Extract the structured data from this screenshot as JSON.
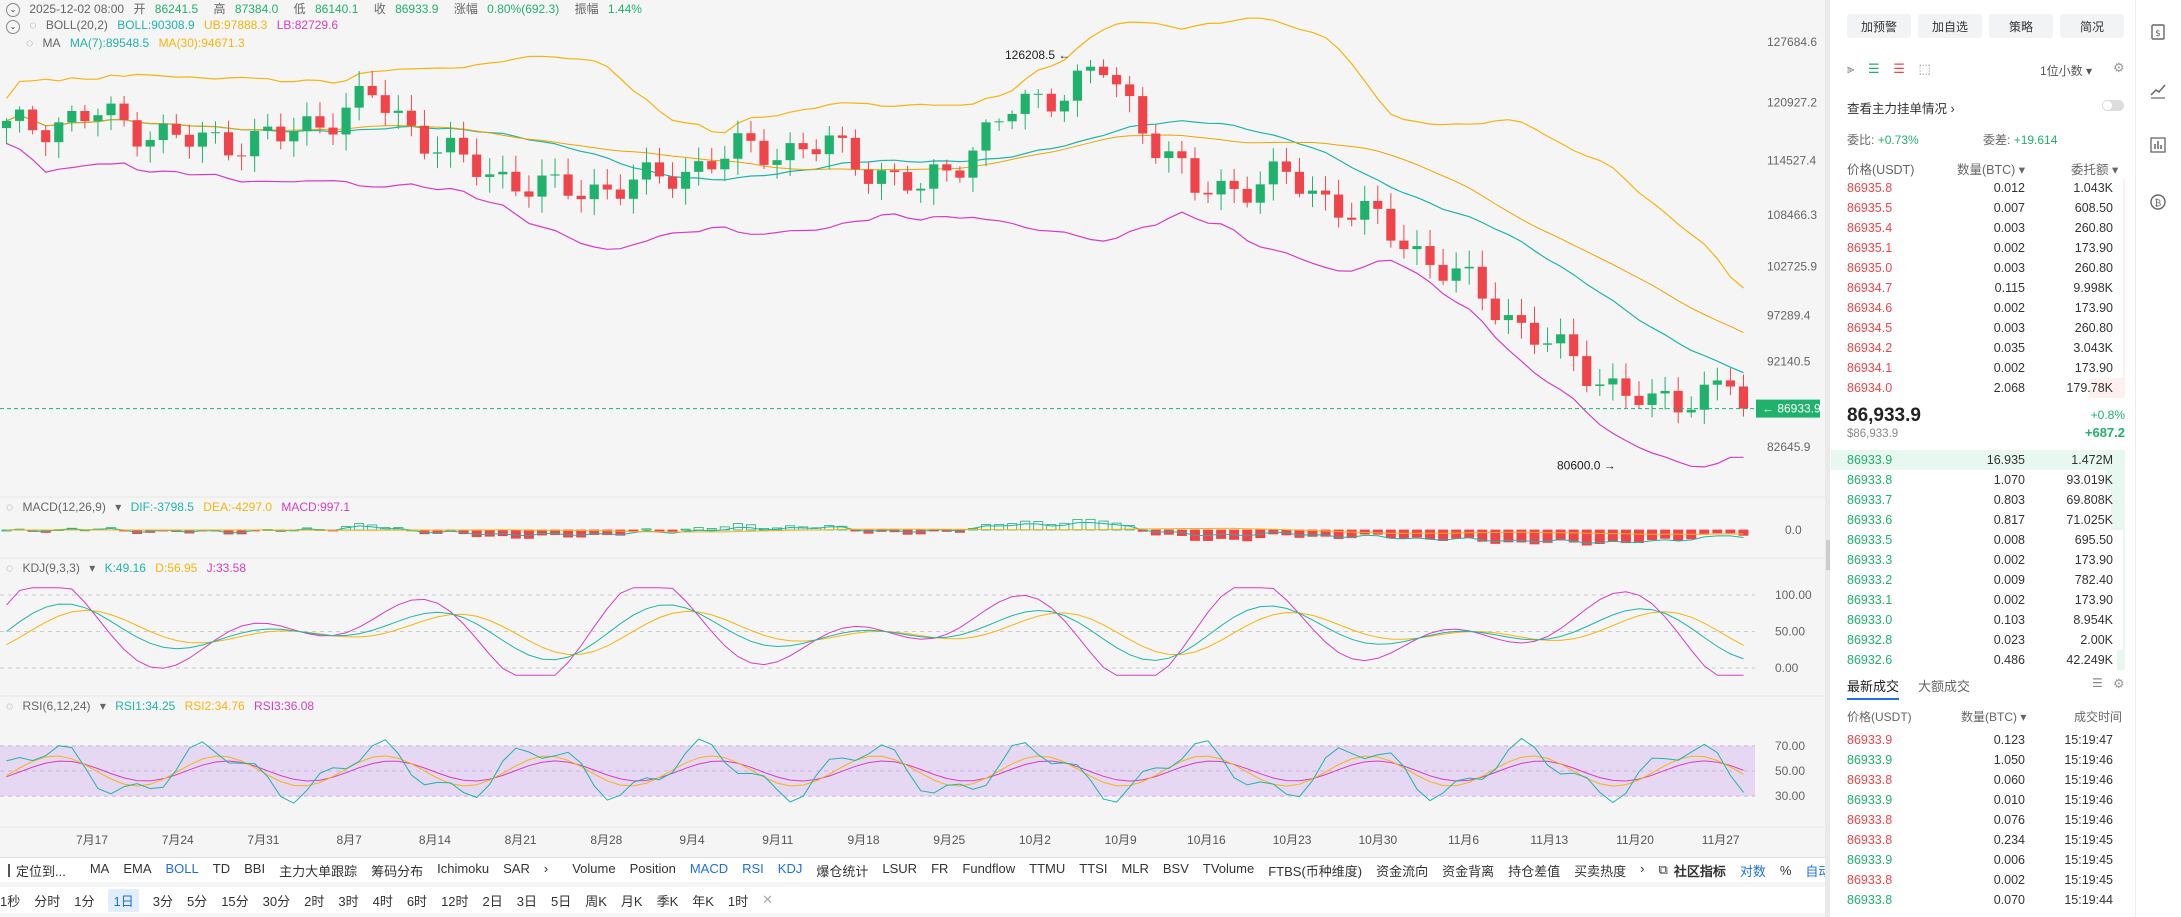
{
  "header": {
    "date": "2025-12-02 08:00",
    "open_label": "开",
    "open": "86241.5",
    "high_label": "高",
    "high": "87384.0",
    "low_label": "低",
    "low": "86140.1",
    "close_label": "收",
    "close": "86933.9",
    "change_label": "涨幅",
    "change": "0.80%(692.3)",
    "amp_label": "振幅",
    "amp": "1.44%"
  },
  "boll": {
    "title": "BOLL(20,2)",
    "boll": "BOLL:90308.9",
    "ub": "UB:97888.3",
    "lb": "LB:82729.6"
  },
  "ma": {
    "title": "MA",
    "ma7": "MA(7):89548.5",
    "ma30": "MA(30):94671.3"
  },
  "macd": {
    "title": "MACD(12,26,9)",
    "dif": "DIF:-3798.5",
    "dea": "DEA:-4297.0",
    "macd": "MACD:997.1"
  },
  "kdj": {
    "title": "KDJ(9,3,3)",
    "k": "K:49.16",
    "d": "D:56.95",
    "j": "J:33.58"
  },
  "rsi": {
    "title": "RSI(6,12,24)",
    "rsi1": "RSI1:34.25",
    "rsi2": "RSI2:34.76",
    "rsi3": "RSI3:36.08"
  },
  "price_axis": [
    "127684.6",
    "120927.2",
    "114527.4",
    "108466.3",
    "102725.9",
    "97289.4",
    "92140.5",
    "82645.9"
  ],
  "current_price_tag": "86933.9",
  "annotations": {
    "high": "126208.5",
    "low": "80600.0"
  },
  "macd_axis": [
    "0.0"
  ],
  "kdj_axis": [
    "100.00",
    "50.00",
    "0.00"
  ],
  "rsi_axis": [
    "70.00",
    "50.00",
    "30.00"
  ],
  "date_axis": [
    "7月17",
    "7月24",
    "7月31",
    "8月7",
    "8月14",
    "8月21",
    "8月28",
    "9月4",
    "9月11",
    "9月18",
    "9月25",
    "10月2",
    "10月9",
    "10月16",
    "10月23",
    "10月30",
    "11月6",
    "11月13",
    "11月20",
    "11月27"
  ],
  "indicator_bar": {
    "locate": "定位到...",
    "items": [
      "MA",
      "EMA",
      "BOLL",
      "TD",
      "BBI",
      "主力大单跟踪",
      "筹码分布",
      "Ichimoku",
      "SAR",
      "Volume",
      "Position",
      "MACD",
      "RSI",
      "KDJ",
      "爆仓统计",
      "LSUR",
      "FR",
      "Fundflow",
      "TTMU",
      "TTSI",
      "MLR",
      "BSV",
      "TVolume",
      "FTBS(币种维度)",
      "资金流向",
      "资金背离",
      "持仓差值",
      "买卖热度"
    ],
    "highlighted": [
      "BOLL",
      "MACD",
      "RSI",
      "KDJ"
    ],
    "community": "社区指标",
    "compare": "对数",
    "percent": "%",
    "auto": "自动"
  },
  "timeframes": [
    "1秒",
    "分时",
    "1分",
    "1日",
    "3分",
    "5分",
    "15分",
    "30分",
    "2时",
    "3时",
    "4时",
    "6时",
    "12时",
    "2日",
    "3日",
    "5日",
    "周K",
    "月K",
    "季K",
    "年K",
    "1时"
  ],
  "selected_timeframe": "1日",
  "right_panel": {
    "buttons": [
      "加预警",
      "加自选",
      "策略",
      "简况"
    ],
    "precision": "1位小数",
    "depth_link": "查看主力挂单情况",
    "weibi_label": "委比:",
    "weibi": "+0.73%",
    "weicha_label": "委差:",
    "weicha": "+19.614",
    "headers": [
      "价格(USDT)",
      "数量(BTC)",
      "委托额"
    ],
    "asks": [
      [
        "86935.8",
        "0.012",
        "1.043K"
      ],
      [
        "86935.5",
        "0.007",
        "608.50"
      ],
      [
        "86935.4",
        "0.003",
        "260.80"
      ],
      [
        "86935.1",
        "0.002",
        "173.90"
      ],
      [
        "86935.0",
        "0.003",
        "260.80"
      ],
      [
        "86934.7",
        "0.115",
        "9.998K"
      ],
      [
        "86934.6",
        "0.002",
        "173.90"
      ],
      [
        "86934.5",
        "0.003",
        "260.80"
      ],
      [
        "86934.2",
        "0.035",
        "3.043K"
      ],
      [
        "86934.1",
        "0.002",
        "173.90"
      ],
      [
        "86934.0",
        "2.068",
        "179.78K"
      ]
    ],
    "last_price": "86,933.9",
    "last_price_usd": "$86,933.9",
    "last_change_pct": "+0.8%",
    "last_change": "+687.2",
    "bids": [
      [
        "86933.9",
        "16.935",
        "1.472M"
      ],
      [
        "86933.8",
        "1.070",
        "93.019K"
      ],
      [
        "86933.7",
        "0.803",
        "69.808K"
      ],
      [
        "86933.6",
        "0.817",
        "71.025K"
      ],
      [
        "86933.5",
        "0.008",
        "695.50"
      ],
      [
        "86933.3",
        "0.002",
        "173.90"
      ],
      [
        "86933.2",
        "0.009",
        "782.40"
      ],
      [
        "86933.1",
        "0.002",
        "173.90"
      ],
      [
        "86933.0",
        "0.103",
        "8.954K"
      ],
      [
        "86932.8",
        "0.023",
        "2.00K"
      ],
      [
        "86932.6",
        "0.486",
        "42.249K"
      ]
    ],
    "trades_tabs": [
      "最新成交",
      "大额成交"
    ],
    "trades_headers": [
      "价格(USDT)",
      "数量(BTC)",
      "成交时间"
    ],
    "trades": [
      [
        "86933.9",
        "0.123",
        "15:19:47",
        "sell"
      ],
      [
        "86933.9",
        "1.050",
        "15:19:46",
        "buy"
      ],
      [
        "86933.8",
        "0.060",
        "15:19:46",
        "sell"
      ],
      [
        "86933.9",
        "0.010",
        "15:19:46",
        "buy"
      ],
      [
        "86933.8",
        "0.076",
        "15:19:46",
        "sell"
      ],
      [
        "86933.8",
        "0.234",
        "15:19:45",
        "sell"
      ],
      [
        "86933.9",
        "0.006",
        "15:19:45",
        "buy"
      ],
      [
        "86933.8",
        "0.002",
        "15:19:45",
        "sell"
      ],
      [
        "86933.8",
        "0.070",
        "15:19:44",
        "buy"
      ]
    ]
  },
  "colors": {
    "up": "#20b26c",
    "down": "#ef454a",
    "accent": "#1f6fe0",
    "ub": "#f6b40e",
    "boll": "#1fb5a8",
    "lb": "#d53ec3"
  },
  "chart_data": {
    "type": "candlestick",
    "x": [
      "7月17",
      "7月24",
      "7月31",
      "8月7",
      "8月14",
      "8月21",
      "8月28",
      "9月4",
      "9月11",
      "9月18",
      "9月25",
      "10月2",
      "10月9",
      "10月16",
      "10月23",
      "10月30",
      "11月6",
      "11月13",
      "11月20",
      "11月27"
    ],
    "ylim": [
      79000,
      129000
    ],
    "close_series": [
      118000,
      119500,
      116500,
      117000,
      121500,
      114000,
      111000,
      112000,
      115500,
      116000,
      111000,
      120000,
      124500,
      111000,
      112500,
      107500,
      100500,
      93000,
      87000,
      90500
    ],
    "high_annotation": 126208.5,
    "low_annotation": 80600.0,
    "last": 86933.9
  }
}
